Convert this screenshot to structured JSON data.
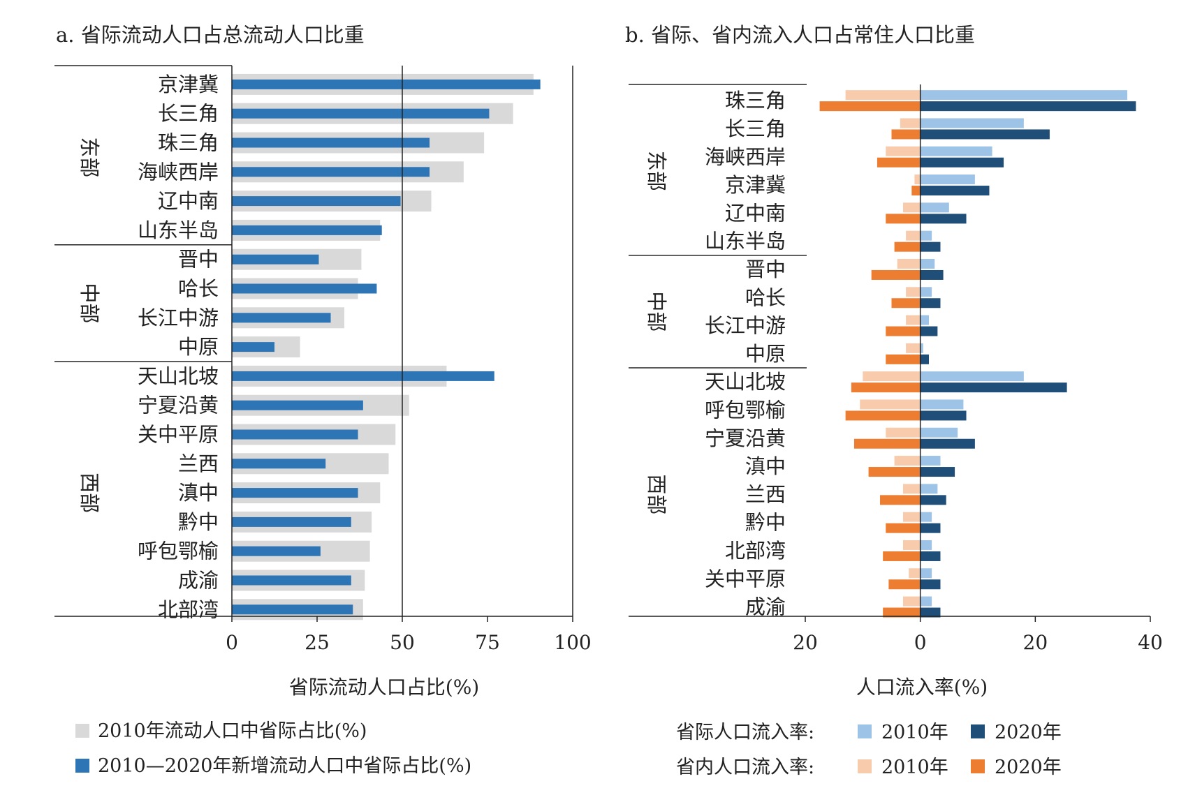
{
  "chart_data": [
    {
      "type": "bar",
      "orientation": "horizontal",
      "title": "a. 省际流动人口占总流动人口比重",
      "xlabel": "省际流动人口占比(%)",
      "xlim": [
        0,
        100
      ],
      "xticks": [
        0,
        25,
        50,
        75,
        100
      ],
      "reference_line": 50,
      "groups": [
        {
          "name": "东部",
          "count": 6
        },
        {
          "name": "中部",
          "count": 4
        },
        {
          "name": "西部",
          "count": 9
        }
      ],
      "categories": [
        "京津冀",
        "长三角",
        "珠三角",
        "海峡西岸",
        "辽中南",
        "山东半岛",
        "晋中",
        "哈长",
        "长江中游",
        "中原",
        "天山北坡",
        "宁夏沿黄",
        "关中平原",
        "兰西",
        "滇中",
        "黔中",
        "呼包鄂榆",
        "成渝",
        "北部湾"
      ],
      "series": [
        {
          "name": "2010年流动人口中省际占比(%)",
          "color": "#d9d9d9",
          "values": [
            88.5,
            82.5,
            74,
            68,
            58.5,
            43.5,
            38,
            37,
            33,
            20,
            63,
            52,
            48,
            46,
            43.5,
            41,
            40.5,
            39,
            38.5
          ]
        },
        {
          "name": "2010—2020年新增流动人口中省际占比(%)",
          "color": "#2e75b6",
          "values": [
            90.5,
            75.5,
            58,
            58,
            49.5,
            44,
            25.5,
            42.5,
            29,
            12.5,
            77,
            38.5,
            37,
            27.5,
            37,
            35,
            26,
            35,
            35.5
          ]
        }
      ],
      "legend": "bottom"
    },
    {
      "type": "bar",
      "orientation": "horizontal",
      "title": "b. 省际、省内流入人口占常住人口比重",
      "xlabel": "人口流入率(%)",
      "xlim": [
        -20,
        40
      ],
      "xticks": [
        -20,
        0,
        20,
        40
      ],
      "xtick_labels": [
        "20",
        "0",
        "20",
        "40"
      ],
      "groups": [
        {
          "name": "东部",
          "count": 6
        },
        {
          "name": "中部",
          "count": 4
        },
        {
          "name": "西部",
          "count": 9
        }
      ],
      "categories": [
        "珠三角",
        "长三角",
        "海峡西岸",
        "京津冀",
        "辽中南",
        "山东半岛",
        "晋中",
        "哈长",
        "长江中游",
        "中原",
        "天山北坡",
        "呼包鄂榆",
        "宁夏沿黄",
        "滇中",
        "兰西",
        "黔中",
        "北部湾",
        "关中平原",
        "成渝"
      ],
      "series": [
        {
          "name": "省际人口流入率 2010年",
          "color": "#9dc3e6",
          "values": [
            36,
            18,
            12.5,
            9.5,
            5,
            2,
            2.5,
            2,
            1.5,
            0.5,
            18,
            7.5,
            6.5,
            3.5,
            3,
            2,
            2,
            2,
            2
          ]
        },
        {
          "name": "省际人口流入率 2020年",
          "color": "#1f4e79",
          "values": [
            37.5,
            22.5,
            14.5,
            12,
            8,
            3.5,
            4,
            3.5,
            3,
            1.5,
            25.5,
            8,
            9.5,
            6,
            4.5,
            3.5,
            3.5,
            3.5,
            3.5
          ]
        },
        {
          "name": "省内人口流入率 2010年",
          "color": "#f8cbad",
          "values": [
            -13,
            -3.5,
            -6,
            -1,
            -3,
            -2.5,
            -4,
            -2.5,
            -2.5,
            -2.5,
            -10,
            -10.5,
            -6,
            -4.5,
            -3,
            -3,
            -3,
            -2,
            -3
          ]
        },
        {
          "name": "省内人口流入率 2020年",
          "color": "#ed7d31",
          "values": [
            -17.5,
            -5,
            -7.5,
            -1.5,
            -6,
            -4.5,
            -8.5,
            -5,
            -6,
            -6,
            -12,
            -13,
            -11.5,
            -9,
            -7,
            -6,
            -6.5,
            -5.5,
            -6.5
          ]
        }
      ],
      "legend": "bottom"
    }
  ],
  "legend_a": [
    {
      "label": "2010年流动人口中省际占比(%)",
      "color": "#d9d9d9"
    },
    {
      "label": "2010—2020年新增流动人口中省际占比(%)",
      "color": "#2e75b6"
    }
  ],
  "legend_b": {
    "row1_label": "省际人口流入率:",
    "row2_label": "省内人口流入率:",
    "row1_items": [
      {
        "label": "2010年",
        "color": "#9dc3e6"
      },
      {
        "label": "2020年",
        "color": "#1f4e79"
      }
    ],
    "row2_items": [
      {
        "label": "2010年",
        "color": "#f8cbad"
      },
      {
        "label": "2020年",
        "color": "#ed7d31"
      }
    ]
  }
}
